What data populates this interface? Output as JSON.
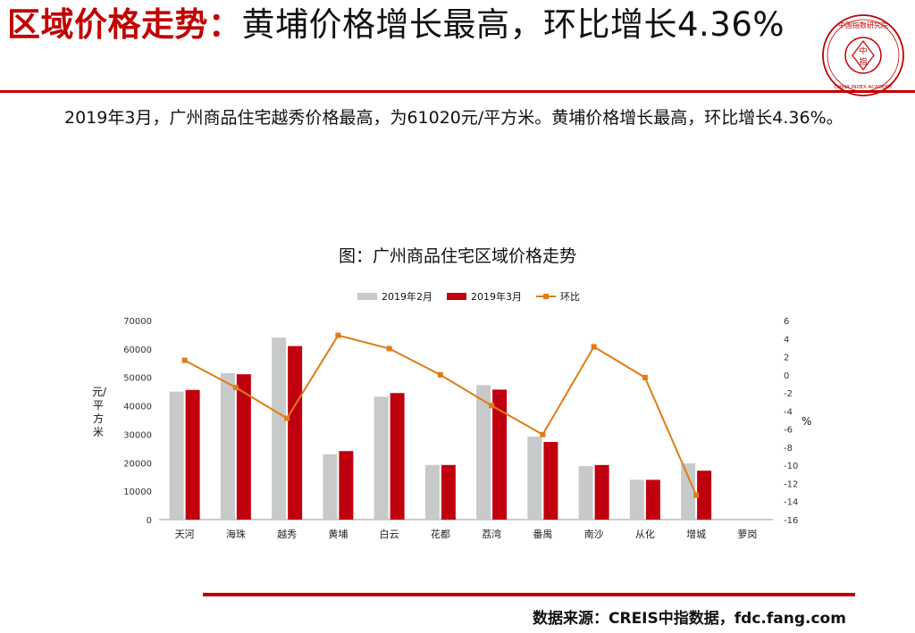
{
  "header": {
    "title_red": "区域价格走势：",
    "title_dark": "黄埔价格增长最高，环比增长4.36%"
  },
  "logo": {
    "text_top": "中国指数研究院",
    "text_mid": "中\n指",
    "text_bottom": "CHINA INDEX ACADEMY"
  },
  "summary": "2019年3月，广州商品住宅越秀价格最高，为61020元/平方米。黄埔价格增长最高，环比增长4.36%。",
  "colors": {
    "accent": "#c00000",
    "feb": "#c8cac9",
    "mar": "#c0000f",
    "mom": "#e07b16"
  },
  "chart_data": {
    "type": "bar",
    "title": "图：广州商品住宅区域价格走势",
    "categories": [
      "天河",
      "海珠",
      "越秀",
      "黄埔",
      "白云",
      "花都",
      "荔湾",
      "番禺",
      "南沙",
      "从化",
      "增城",
      "萝岗"
    ],
    "series": [
      {
        "name": "2019年2月",
        "type": "bar",
        "axis": "left",
        "values": [
          45000,
          51500,
          64000,
          23000,
          43200,
          19200,
          47300,
          29200,
          18800,
          14000,
          19800,
          null
        ]
      },
      {
        "name": "2019年3月",
        "type": "bar",
        "axis": "left",
        "values": [
          45600,
          51100,
          61020,
          24100,
          44500,
          19200,
          45700,
          27300,
          19200,
          14000,
          17200,
          null
        ]
      },
      {
        "name": "环比",
        "type": "line",
        "axis": "right",
        "values": [
          1.6,
          -1.4,
          -4.8,
          4.36,
          2.9,
          0.0,
          -3.4,
          -6.6,
          3.1,
          -0.3,
          -13.3,
          null
        ]
      }
    ],
    "ylabel": "元/平方米",
    "y2label": "%",
    "ylim": [
      0,
      70000
    ],
    "y2lim": [
      -16,
      6
    ],
    "yticks": [
      "0",
      "10000",
      "20000",
      "30000",
      "40000",
      "50000",
      "60000",
      "70000"
    ],
    "y2ticks": [
      "-16",
      "-14",
      "-12",
      "-10",
      "-8",
      "-6",
      "-4",
      "-2",
      "0",
      "2",
      "4",
      "6"
    ],
    "legend": "top"
  },
  "footer": {
    "source": "数据来源：CREIS中指数据，fdc.fang.com"
  }
}
